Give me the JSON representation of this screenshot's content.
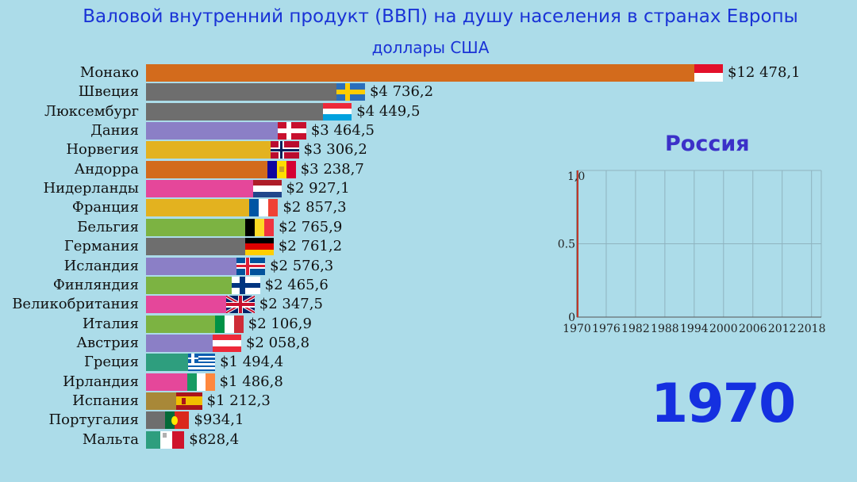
{
  "header": {
    "title": "Валовой внутренний продукт (ВВП) на душу населения в странах Европы",
    "subtitle": "доллары США"
  },
  "chart_data": [
    {
      "type": "bar",
      "orientation": "horizontal",
      "title": "Валовой внутренний продукт (ВВП) на душу населения в странах Европы",
      "subtitle": "доллары США",
      "year": "1970",
      "categories": [
        "Монако",
        "Швеция",
        "Люксембург",
        "Дания",
        "Норвегия",
        "Андорра",
        "Нидерланды",
        "Франция",
        "Бельгия",
        "Германия",
        "Исландия",
        "Финляндия",
        "Великобритания",
        "Италия",
        "Австрия",
        "Греция",
        "Ирландия",
        "Испания",
        "Португалия",
        "Мальта"
      ],
      "values": [
        12478.1,
        4736.2,
        4449.5,
        3464.5,
        3306.2,
        3238.7,
        2927.1,
        2857.3,
        2765.9,
        2761.2,
        2576.3,
        2465.6,
        2347.5,
        2106.9,
        2058.8,
        1494.4,
        1486.8,
        1212.3,
        934.1,
        828.4
      ],
      "value_labels": [
        "$12 478,1",
        "$4 736,2",
        "$4 449,5",
        "$3 464,5",
        "$3 306,2",
        "$3 238,7",
        "$2 927,1",
        "$2 857,3",
        "$2 765,9",
        "$2 761,2",
        "$2 576,3",
        "$2 465,6",
        "$2 347,5",
        "$2 106,9",
        "$2 058,8",
        "$1 494,4",
        "$1 486,8",
        "$1 212,3",
        "$934,1",
        "$828,4"
      ],
      "colors": [
        "#d36b1c",
        "#6e6e6e",
        "#6e6e6e",
        "#8b7fc6",
        "#e3b21f",
        "#d36b1c",
        "#e5479a",
        "#e3b21f",
        "#7cb342",
        "#6e6e6e",
        "#8b7fc6",
        "#7cb342",
        "#e5479a",
        "#7cb342",
        "#8b7fc6",
        "#2e9e7e",
        "#e5479a",
        "#a88838",
        "#6e6e6e",
        "#2e9e7e"
      ],
      "flags": [
        "monaco",
        "sweden",
        "luxembourg",
        "denmark",
        "norway",
        "andorra",
        "netherlands",
        "france",
        "belgium",
        "germany",
        "iceland",
        "finland",
        "uk",
        "italy",
        "austria",
        "greece",
        "ireland",
        "spain",
        "portugal",
        "malta"
      ]
    },
    {
      "type": "line",
      "title": "Россия",
      "x_ticks": [
        "1970",
        "1976",
        "1982",
        "1988",
        "1994",
        "2000",
        "2006",
        "2012",
        "2018"
      ],
      "y_ticks": [
        "0",
        "0.5",
        "1.0"
      ],
      "y_top_label": "1,0",
      "xlim": [
        1970,
        2020
      ],
      "ylim": [
        0,
        1
      ],
      "series": [
        {
          "x": [
            1970,
            1970
          ],
          "y": [
            0,
            1
          ]
        }
      ],
      "line_color": "#c0392b",
      "grid": true
    }
  ]
}
